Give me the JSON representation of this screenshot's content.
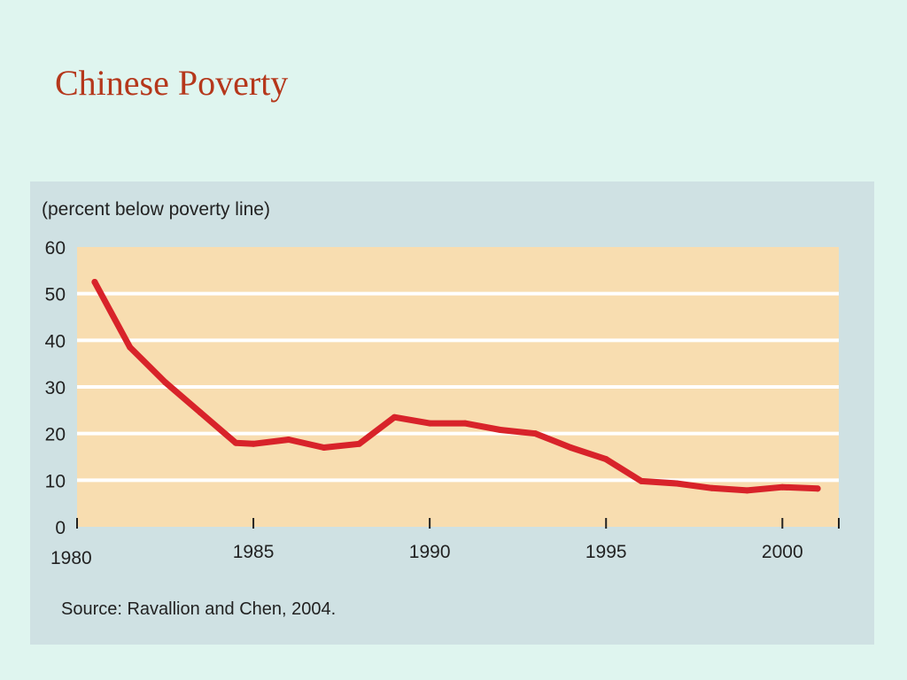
{
  "slide": {
    "title": "Chinese Poverty"
  },
  "chart_data": {
    "type": "line",
    "ylabel": "(percent below poverty line)",
    "source": "Source: Ravallion and Chen, 2004.",
    "xlim": [
      1980,
      2001.6
    ],
    "ylim": [
      0,
      60
    ],
    "x_ticks": [
      1980,
      1985,
      1990,
      1995,
      2000
    ],
    "y_ticks": [
      0,
      10,
      20,
      30,
      40,
      50,
      60
    ],
    "grid": true,
    "series": [
      {
        "color": "#d8232a",
        "x": [
          1980.5,
          1981.5,
          1982.5,
          1983.5,
          1984.5,
          1985,
          1986,
          1987,
          1988,
          1989,
          1990,
          1991,
          1992,
          1993,
          1994,
          1995,
          1996,
          1997,
          1998,
          1999,
          2000,
          2001
        ],
        "y": [
          52.5,
          38.5,
          31,
          24.5,
          18,
          17.8,
          18.7,
          17,
          17.8,
          23.5,
          22.2,
          22.2,
          20.8,
          20,
          17,
          14.5,
          9.8,
          9.3,
          8.3,
          7.8,
          8.5,
          8.2
        ]
      }
    ]
  },
  "colors": {
    "background": "#dff5ef",
    "panel": "#cfe1e3",
    "plot_area": "#f8ddb0",
    "gridline": "#ffffff",
    "title": "#b5371b",
    "line": "#d8232a"
  }
}
